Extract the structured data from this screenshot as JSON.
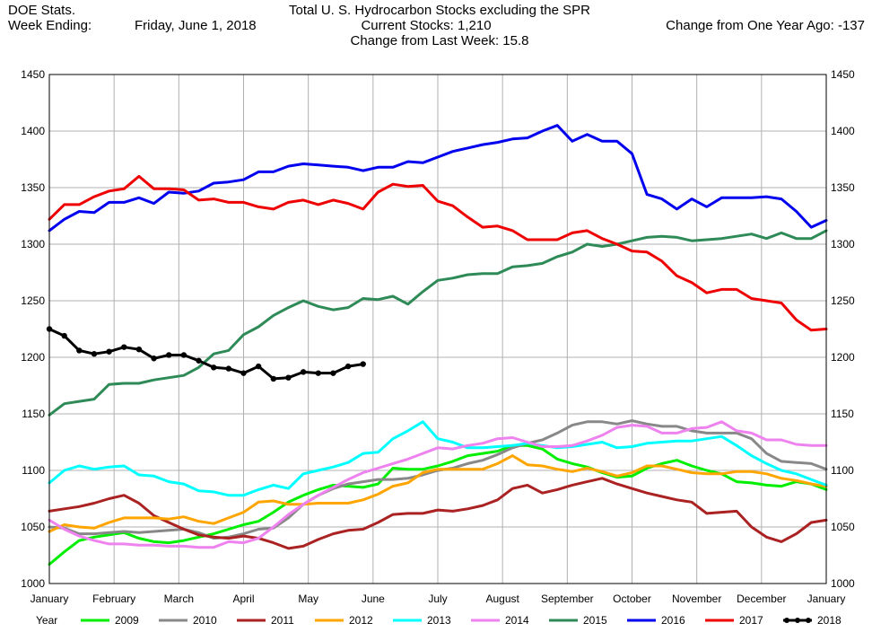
{
  "header": {
    "source": "DOE Stats.",
    "week_ending_label": "Week Ending:",
    "week_ending_date": "Friday, June 1, 2018",
    "title": "Total U. S. Hydrocarbon Stocks excluding the SPR",
    "current_stocks": "Current Stocks:   1,210",
    "change_last_week": "Change from Last Week:  15.8",
    "change_year_ago": "Change from One Year Ago:  -137"
  },
  "chart_data": {
    "type": "line",
    "title": "Total U. S. Hydrocarbon Stocks excluding the SPR",
    "xlabel": "",
    "ylabel": "",
    "ylim": [
      1000,
      1450
    ],
    "y_ticks": [
      1000,
      1050,
      1100,
      1150,
      1200,
      1250,
      1300,
      1350,
      1400,
      1450
    ],
    "x_ticks": [
      "January",
      "February",
      "March",
      "April",
      "May",
      "June",
      "July",
      "August",
      "September",
      "October",
      "November",
      "December",
      "January"
    ],
    "grid": true,
    "legend_title": "Year",
    "legend_placement": "bottom",
    "x_units": "week of year (0-52)",
    "series": [
      {
        "name": "2009",
        "color": "#00ee00",
        "markers": false,
        "x": [
          0,
          1,
          2,
          3,
          4,
          5,
          6,
          7,
          8,
          9,
          10,
          11,
          12,
          13,
          14,
          15,
          16,
          17,
          18,
          19,
          20,
          21,
          22,
          23,
          24,
          25,
          26,
          27,
          28,
          29,
          30,
          31,
          32,
          33,
          34,
          35,
          36,
          37,
          38,
          39,
          40,
          41,
          42,
          43,
          44,
          45,
          46,
          47,
          48,
          49,
          50,
          51,
          52
        ],
        "y": [
          1017,
          1028,
          1038,
          1041,
          1043,
          1045,
          1040,
          1037,
          1036,
          1038,
          1041,
          1044,
          1048,
          1052,
          1055,
          1063,
          1072,
          1078,
          1083,
          1087,
          1086,
          1085,
          1088,
          1102,
          1101,
          1101,
          1104,
          1108,
          1113,
          1115,
          1117,
          1122,
          1122,
          1119,
          1110,
          1106,
          1103,
          1098,
          1094,
          1095,
          1102,
          1106,
          1109,
          1104,
          1100,
          1097,
          1090,
          1089,
          1087,
          1086,
          1090,
          1088,
          1083
        ]
      },
      {
        "name": "2010",
        "color": "#888888",
        "markers": false,
        "x": [
          0,
          1,
          2,
          3,
          4,
          5,
          6,
          7,
          8,
          9,
          10,
          11,
          12,
          13,
          14,
          15,
          16,
          17,
          18,
          19,
          20,
          21,
          22,
          23,
          24,
          25,
          26,
          27,
          28,
          29,
          30,
          31,
          32,
          33,
          34,
          35,
          36,
          37,
          38,
          39,
          40,
          41,
          42,
          43,
          44,
          45,
          46,
          47,
          48,
          49,
          50,
          51,
          52
        ],
        "y": [
          1050,
          1049,
          1044,
          1044,
          1045,
          1046,
          1045,
          1046,
          1047,
          1048,
          1045,
          1040,
          1041,
          1044,
          1048,
          1049,
          1058,
          1070,
          1078,
          1084,
          1088,
          1090,
          1092,
          1092,
          1093,
          1096,
          1100,
          1102,
          1106,
          1109,
          1114,
          1120,
          1124,
          1127,
          1133,
          1140,
          1143,
          1143,
          1141,
          1144,
          1141,
          1139,
          1139,
          1135,
          1133,
          1133,
          1133,
          1128,
          1115,
          1108,
          1107,
          1106,
          1101
        ]
      },
      {
        "name": "2011",
        "color": "#aa2222",
        "markers": false,
        "x": [
          0,
          1,
          2,
          3,
          4,
          5,
          6,
          7,
          8,
          9,
          10,
          11,
          12,
          13,
          14,
          15,
          16,
          17,
          18,
          19,
          20,
          21,
          22,
          23,
          24,
          25,
          26,
          27,
          28,
          29,
          30,
          31,
          32,
          33,
          34,
          35,
          36,
          37,
          38,
          39,
          40,
          41,
          42,
          43,
          44,
          45,
          46,
          47,
          48,
          49,
          50,
          51,
          52
        ],
        "y": [
          1064,
          1066,
          1068,
          1071,
          1075,
          1078,
          1071,
          1060,
          1054,
          1048,
          1043,
          1041,
          1040,
          1042,
          1040,
          1036,
          1031,
          1033,
          1039,
          1044,
          1047,
          1048,
          1054,
          1061,
          1062,
          1062,
          1065,
          1064,
          1066,
          1069,
          1074,
          1084,
          1087,
          1080,
          1083,
          1087,
          1090,
          1093,
          1088,
          1084,
          1080,
          1077,
          1074,
          1072,
          1062,
          1063,
          1064,
          1050,
          1041,
          1037,
          1044,
          1054,
          1056
        ]
      },
      {
        "name": "2012",
        "color": "#ffa500",
        "markers": false,
        "x": [
          0,
          1,
          2,
          3,
          4,
          5,
          6,
          7,
          8,
          9,
          10,
          11,
          12,
          13,
          14,
          15,
          16,
          17,
          18,
          19,
          20,
          21,
          22,
          23,
          24,
          25,
          26,
          27,
          28,
          29,
          30,
          31,
          32,
          33,
          34,
          35,
          36,
          37,
          38,
          39,
          40,
          41,
          42,
          43,
          44,
          45,
          46,
          47,
          48,
          49,
          50,
          51,
          52
        ],
        "y": [
          1046,
          1052,
          1050,
          1049,
          1054,
          1058,
          1058,
          1058,
          1057,
          1059,
          1055,
          1053,
          1058,
          1063,
          1072,
          1073,
          1070,
          1070,
          1071,
          1071,
          1071,
          1074,
          1079,
          1086,
          1089,
          1098,
          1101,
          1101,
          1101,
          1101,
          1106,
          1113,
          1105,
          1104,
          1101,
          1099,
          1102,
          1099,
          1095,
          1098,
          1104,
          1104,
          1101,
          1098,
          1097,
          1097,
          1099,
          1099,
          1097,
          1093,
          1091,
          1088,
          1086
        ]
      },
      {
        "name": "2013",
        "color": "#00ffff",
        "markers": false,
        "x": [
          0,
          1,
          2,
          3,
          4,
          5,
          6,
          7,
          8,
          9,
          10,
          11,
          12,
          13,
          14,
          15,
          16,
          17,
          18,
          19,
          20,
          21,
          22,
          23,
          24,
          25,
          26,
          27,
          28,
          29,
          30,
          31,
          32,
          33,
          34,
          35,
          36,
          37,
          38,
          39,
          40,
          41,
          42,
          43,
          44,
          45,
          46,
          47,
          48,
          49,
          50,
          51,
          52
        ],
        "y": [
          1089,
          1100,
          1104,
          1101,
          1103,
          1104,
          1096,
          1095,
          1090,
          1088,
          1082,
          1081,
          1078,
          1078,
          1083,
          1087,
          1084,
          1097,
          1100,
          1103,
          1107,
          1115,
          1116,
          1128,
          1135,
          1143,
          1128,
          1125,
          1120,
          1120,
          1121,
          1122,
          1124,
          1122,
          1120,
          1121,
          1123,
          1125,
          1120,
          1121,
          1124,
          1125,
          1126,
          1126,
          1128,
          1130,
          1122,
          1113,
          1106,
          1100,
          1097,
          1092,
          1087
        ]
      },
      {
        "name": "2014",
        "color": "#ee82ee",
        "markers": false,
        "x": [
          0,
          1,
          2,
          3,
          4,
          5,
          6,
          7,
          8,
          9,
          10,
          11,
          12,
          13,
          14,
          15,
          16,
          17,
          18,
          19,
          20,
          21,
          22,
          23,
          24,
          25,
          26,
          27,
          28,
          29,
          30,
          31,
          32,
          33,
          34,
          35,
          36,
          37,
          38,
          39,
          40,
          41,
          42,
          43,
          44,
          45,
          46,
          47,
          48,
          49,
          50,
          51,
          52
        ],
        "y": [
          1056,
          1048,
          1042,
          1038,
          1035,
          1035,
          1034,
          1034,
          1033,
          1033,
          1032,
          1032,
          1037,
          1036,
          1040,
          1050,
          1061,
          1070,
          1078,
          1085,
          1092,
          1098,
          1102,
          1106,
          1110,
          1115,
          1120,
          1119,
          1122,
          1124,
          1128,
          1129,
          1125,
          1121,
          1121,
          1122,
          1126,
          1131,
          1138,
          1140,
          1139,
          1133,
          1133,
          1137,
          1138,
          1143,
          1135,
          1133,
          1127,
          1127,
          1123,
          1122,
          1122
        ]
      },
      {
        "name": "2015",
        "color": "#2e8b57",
        "markers": false,
        "x": [
          0,
          1,
          2,
          3,
          4,
          5,
          6,
          7,
          8,
          9,
          10,
          11,
          12,
          13,
          14,
          15,
          16,
          17,
          18,
          19,
          20,
          21,
          22,
          23,
          24,
          25,
          26,
          27,
          28,
          29,
          30,
          31,
          32,
          33,
          34,
          35,
          36,
          37,
          38,
          39,
          40,
          41,
          42,
          43,
          44,
          45,
          46,
          47,
          48,
          49,
          50,
          51,
          52
        ],
        "y": [
          1149,
          1159,
          1161,
          1163,
          1176,
          1177,
          1177,
          1180,
          1182,
          1184,
          1191,
          1203,
          1206,
          1220,
          1227,
          1237,
          1244,
          1250,
          1245,
          1242,
          1244,
          1252,
          1251,
          1254,
          1247,
          1258,
          1268,
          1270,
          1273,
          1274,
          1274,
          1280,
          1281,
          1283,
          1289,
          1293,
          1300,
          1298,
          1300,
          1303,
          1306,
          1307,
          1306,
          1303,
          1304,
          1305,
          1307,
          1309,
          1305,
          1310,
          1305,
          1305,
          1312
        ]
      },
      {
        "name": "2016",
        "color": "#0000ee",
        "markers": false,
        "x": [
          0,
          1,
          2,
          3,
          4,
          5,
          6,
          7,
          8,
          9,
          10,
          11,
          12,
          13,
          14,
          15,
          16,
          17,
          18,
          19,
          20,
          21,
          22,
          23,
          24,
          25,
          26,
          27,
          28,
          29,
          30,
          31,
          32,
          33,
          34,
          35,
          36,
          37,
          38,
          39,
          40,
          41,
          42,
          43,
          44,
          45,
          46,
          47,
          48,
          49,
          50,
          51,
          52
        ],
        "y": [
          1312,
          1322,
          1329,
          1328,
          1337,
          1337,
          1341,
          1336,
          1346,
          1345,
          1347,
          1354,
          1355,
          1357,
          1364,
          1364,
          1369,
          1371,
          1370,
          1369,
          1368,
          1365,
          1368,
          1368,
          1373,
          1372,
          1377,
          1382,
          1385,
          1388,
          1390,
          1393,
          1394,
          1400,
          1405,
          1391,
          1397,
          1391,
          1391,
          1380,
          1344,
          1340,
          1331,
          1340,
          1333,
          1341,
          1341,
          1341,
          1342,
          1340,
          1329,
          1315,
          1321
        ]
      },
      {
        "name": "2017",
        "color": "#ee0000",
        "markers": false,
        "x": [
          0,
          1,
          2,
          3,
          4,
          5,
          6,
          7,
          8,
          9,
          10,
          11,
          12,
          13,
          14,
          15,
          16,
          17,
          18,
          19,
          20,
          21,
          22,
          23,
          24,
          25,
          26,
          27,
          28,
          29,
          30,
          31,
          32,
          33,
          34,
          35,
          36,
          37,
          38,
          39,
          40,
          41,
          42,
          43,
          44,
          45,
          46,
          47,
          48,
          49,
          50,
          51,
          52
        ],
        "y": [
          1322,
          1335,
          1335,
          1342,
          1347,
          1349,
          1360,
          1349,
          1349,
          1348,
          1339,
          1340,
          1337,
          1337,
          1333,
          1331,
          1337,
          1339,
          1335,
          1339,
          1336,
          1331,
          1346,
          1353,
          1351,
          1352,
          1338,
          1334,
          1324,
          1315,
          1316,
          1312,
          1304,
          1304,
          1304,
          1310,
          1312,
          1305,
          1300,
          1294,
          1293,
          1285,
          1272,
          1266,
          1257,
          1260,
          1260,
          1252,
          1250,
          1248,
          1233,
          1224,
          1225
        ]
      },
      {
        "name": "2018",
        "color": "#000000",
        "markers": true,
        "x": [
          0,
          1,
          2,
          3,
          4,
          5,
          6,
          7,
          8,
          9,
          10,
          11,
          12,
          13,
          14,
          15,
          16,
          17,
          18,
          19,
          20,
          21
        ],
        "y": [
          1225,
          1219,
          1206,
          1203,
          1205,
          1209,
          1207,
          1199,
          1202,
          1202,
          1197,
          1191,
          1190,
          1186,
          1192,
          1181,
          1182,
          1187,
          1186,
          1186,
          1192,
          1194
        ]
      }
    ]
  }
}
